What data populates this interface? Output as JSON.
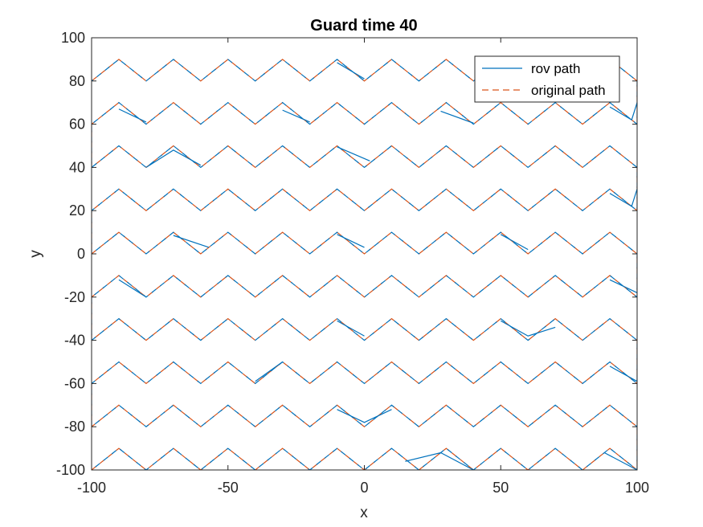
{
  "chart_data": {
    "type": "line",
    "title": "Guard time 40",
    "xlabel": "x",
    "ylabel": "y",
    "xlim": [
      -100,
      100
    ],
    "ylim": [
      -100,
      100
    ],
    "xticks": [
      -100,
      -50,
      0,
      50,
      100
    ],
    "yticks": [
      -100,
      -80,
      -60,
      -40,
      -20,
      0,
      20,
      40,
      60,
      80,
      100
    ],
    "xtick_labels": [
      "-100",
      "-50",
      "0",
      "50",
      "100"
    ],
    "ytick_labels": [
      "-100",
      "-80",
      "-60",
      "-40",
      "-20",
      "0",
      "20",
      "40",
      "60",
      "80",
      "100"
    ],
    "grid": false,
    "legend_position": "top-right",
    "pattern": {
      "description": "lawnmower zigzag: rows at y = -100 to 80 step 20, each zigzagging with amplitude 10 and x period 20, connected at the edges",
      "row_bases": [
        -100,
        -80,
        -60,
        -40,
        -20,
        0,
        20,
        40,
        60,
        80
      ],
      "amplitude": 10,
      "period_x": 20
    },
    "series": [
      {
        "name": "rov path",
        "color": "#0072BD",
        "style": "solid",
        "deviations": [
          {
            "row": -100,
            "points": [
              [
                15,
                -96
              ],
              [
                28,
                -92
              ],
              [
                40,
                -100
              ]
            ]
          },
          {
            "row": -100,
            "points": [
              [
                88,
                -92
              ],
              [
                100,
                -100
              ]
            ]
          },
          {
            "row": -80,
            "points": [
              [
                -10,
                -72
              ],
              [
                0,
                -78
              ],
              [
                10,
                -72
              ]
            ]
          },
          {
            "row": -60,
            "points": [
              [
                -40,
                -59
              ],
              [
                -30,
                -50
              ]
            ]
          },
          {
            "row": -60,
            "points": [
              [
                90,
                -52
              ],
              [
                100,
                -59
              ]
            ]
          },
          {
            "row": -40,
            "points": [
              [
                -10,
                -31
              ],
              [
                0,
                -38
              ]
            ]
          },
          {
            "row": -40,
            "points": [
              [
                50,
                -31
              ],
              [
                60,
                -38
              ],
              [
                70,
                -34
              ]
            ]
          },
          {
            "row": -20,
            "points": [
              [
                -90,
                -12
              ],
              [
                -80,
                -20
              ]
            ]
          },
          {
            "row": -20,
            "points": [
              [
                90,
                -12
              ],
              [
                100,
                -18
              ]
            ]
          },
          {
            "row": 0,
            "points": [
              [
                -70,
                8.5
              ],
              [
                -57,
                3
              ]
            ]
          },
          {
            "row": 0,
            "points": [
              [
                -10,
                9
              ],
              [
                0,
                3
              ]
            ]
          },
          {
            "row": 0,
            "points": [
              [
                50,
                9
              ],
              [
                60,
                2
              ]
            ]
          },
          {
            "row": 20,
            "points": [
              [
                90,
                28
              ],
              [
                98,
                22
              ],
              [
                100,
                30
              ]
            ]
          },
          {
            "row": 40,
            "points": [
              [
                -80,
                40
              ],
              [
                -70,
                48
              ],
              [
                -60,
                41
              ]
            ]
          },
          {
            "row": 40,
            "points": [
              [
                -10,
                49.5
              ],
              [
                2,
                43
              ]
            ]
          },
          {
            "row": 60,
            "points": [
              [
                -90,
                67
              ],
              [
                -80,
                61
              ]
            ]
          },
          {
            "row": 60,
            "points": [
              [
                -30,
                66.5
              ],
              [
                -20,
                61
              ]
            ]
          },
          {
            "row": 60,
            "points": [
              [
                28,
                66
              ],
              [
                40,
                60.5
              ]
            ]
          },
          {
            "row": 60,
            "points": [
              [
                90,
                68
              ],
              [
                98,
                62
              ],
              [
                100,
                70
              ]
            ]
          },
          {
            "row": 80,
            "points": [
              [
                -10,
                88.5
              ],
              [
                0,
                81
              ]
            ]
          }
        ]
      },
      {
        "name": "original path",
        "color": "#D95319",
        "style": "dashed"
      }
    ]
  }
}
